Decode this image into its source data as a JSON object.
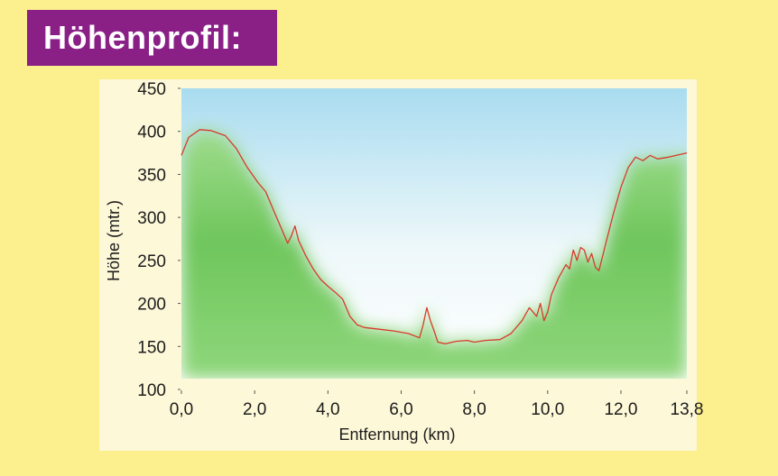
{
  "title": "Höhenprofil:",
  "colors": {
    "background": "#fbef8e",
    "title_background": "#8a1f86",
    "title_text": "#ffffff",
    "sky_top": "#a9dcf0",
    "ground": "#7ccf6c",
    "profile_line": "#d83a2a"
  },
  "chart_data": {
    "type": "area",
    "title": "",
    "xlabel": "Entfernung  (km)",
    "ylabel": "Höhe  (mtr.)",
    "xlim": [
      0,
      13.8
    ],
    "ylim": [
      100,
      450
    ],
    "x_ticks": [
      "0,0",
      "2,0",
      "4,0",
      "6,0",
      "8,0",
      "10,0",
      "12,0",
      "13,8"
    ],
    "x_tick_values": [
      0,
      2,
      4,
      6,
      8,
      10,
      12,
      13.8
    ],
    "y_ticks": [
      "100",
      "150",
      "200",
      "250",
      "300",
      "350",
      "400",
      "450"
    ],
    "y_tick_values": [
      100,
      150,
      200,
      250,
      300,
      350,
      400,
      450
    ],
    "grid": false,
    "series": [
      {
        "values_x": [
          0,
          0.2,
          0.5,
          0.8,
          1.2,
          1.5,
          1.8,
          2.1,
          2.3,
          2.5,
          2.7,
          2.9,
          3.0,
          3.1,
          3.2,
          3.4,
          3.6,
          3.8,
          4.0,
          4.2,
          4.4,
          4.6,
          4.8,
          5.0,
          5.4,
          5.8,
          6.2,
          6.5,
          6.6,
          6.7,
          6.8,
          6.9,
          7.0,
          7.2,
          7.5,
          7.8,
          8.0,
          8.3,
          8.7,
          9.0,
          9.3,
          9.5,
          9.7,
          9.8,
          9.9,
          10.0,
          10.1,
          10.3,
          10.5,
          10.6,
          10.7,
          10.8,
          10.9,
          11.0,
          11.1,
          11.2,
          11.3,
          11.4,
          11.5,
          11.6,
          11.8,
          12.0,
          12.2,
          12.4,
          12.6,
          12.8,
          13.0,
          13.3,
          13.6,
          13.8
        ],
        "values_y": [
          372,
          393,
          402,
          401,
          395,
          380,
          358,
          340,
          330,
          310,
          290,
          270,
          278,
          290,
          273,
          255,
          240,
          228,
          220,
          213,
          205,
          185,
          175,
          172,
          170,
          168,
          165,
          160,
          175,
          195,
          180,
          168,
          155,
          153,
          156,
          157,
          155,
          157,
          158,
          165,
          180,
          195,
          185,
          200,
          180,
          190,
          210,
          230,
          245,
          240,
          262,
          250,
          265,
          262,
          248,
          258,
          242,
          238,
          255,
          272,
          305,
          335,
          358,
          370,
          366,
          372,
          368,
          370,
          373,
          375
        ]
      }
    ]
  }
}
